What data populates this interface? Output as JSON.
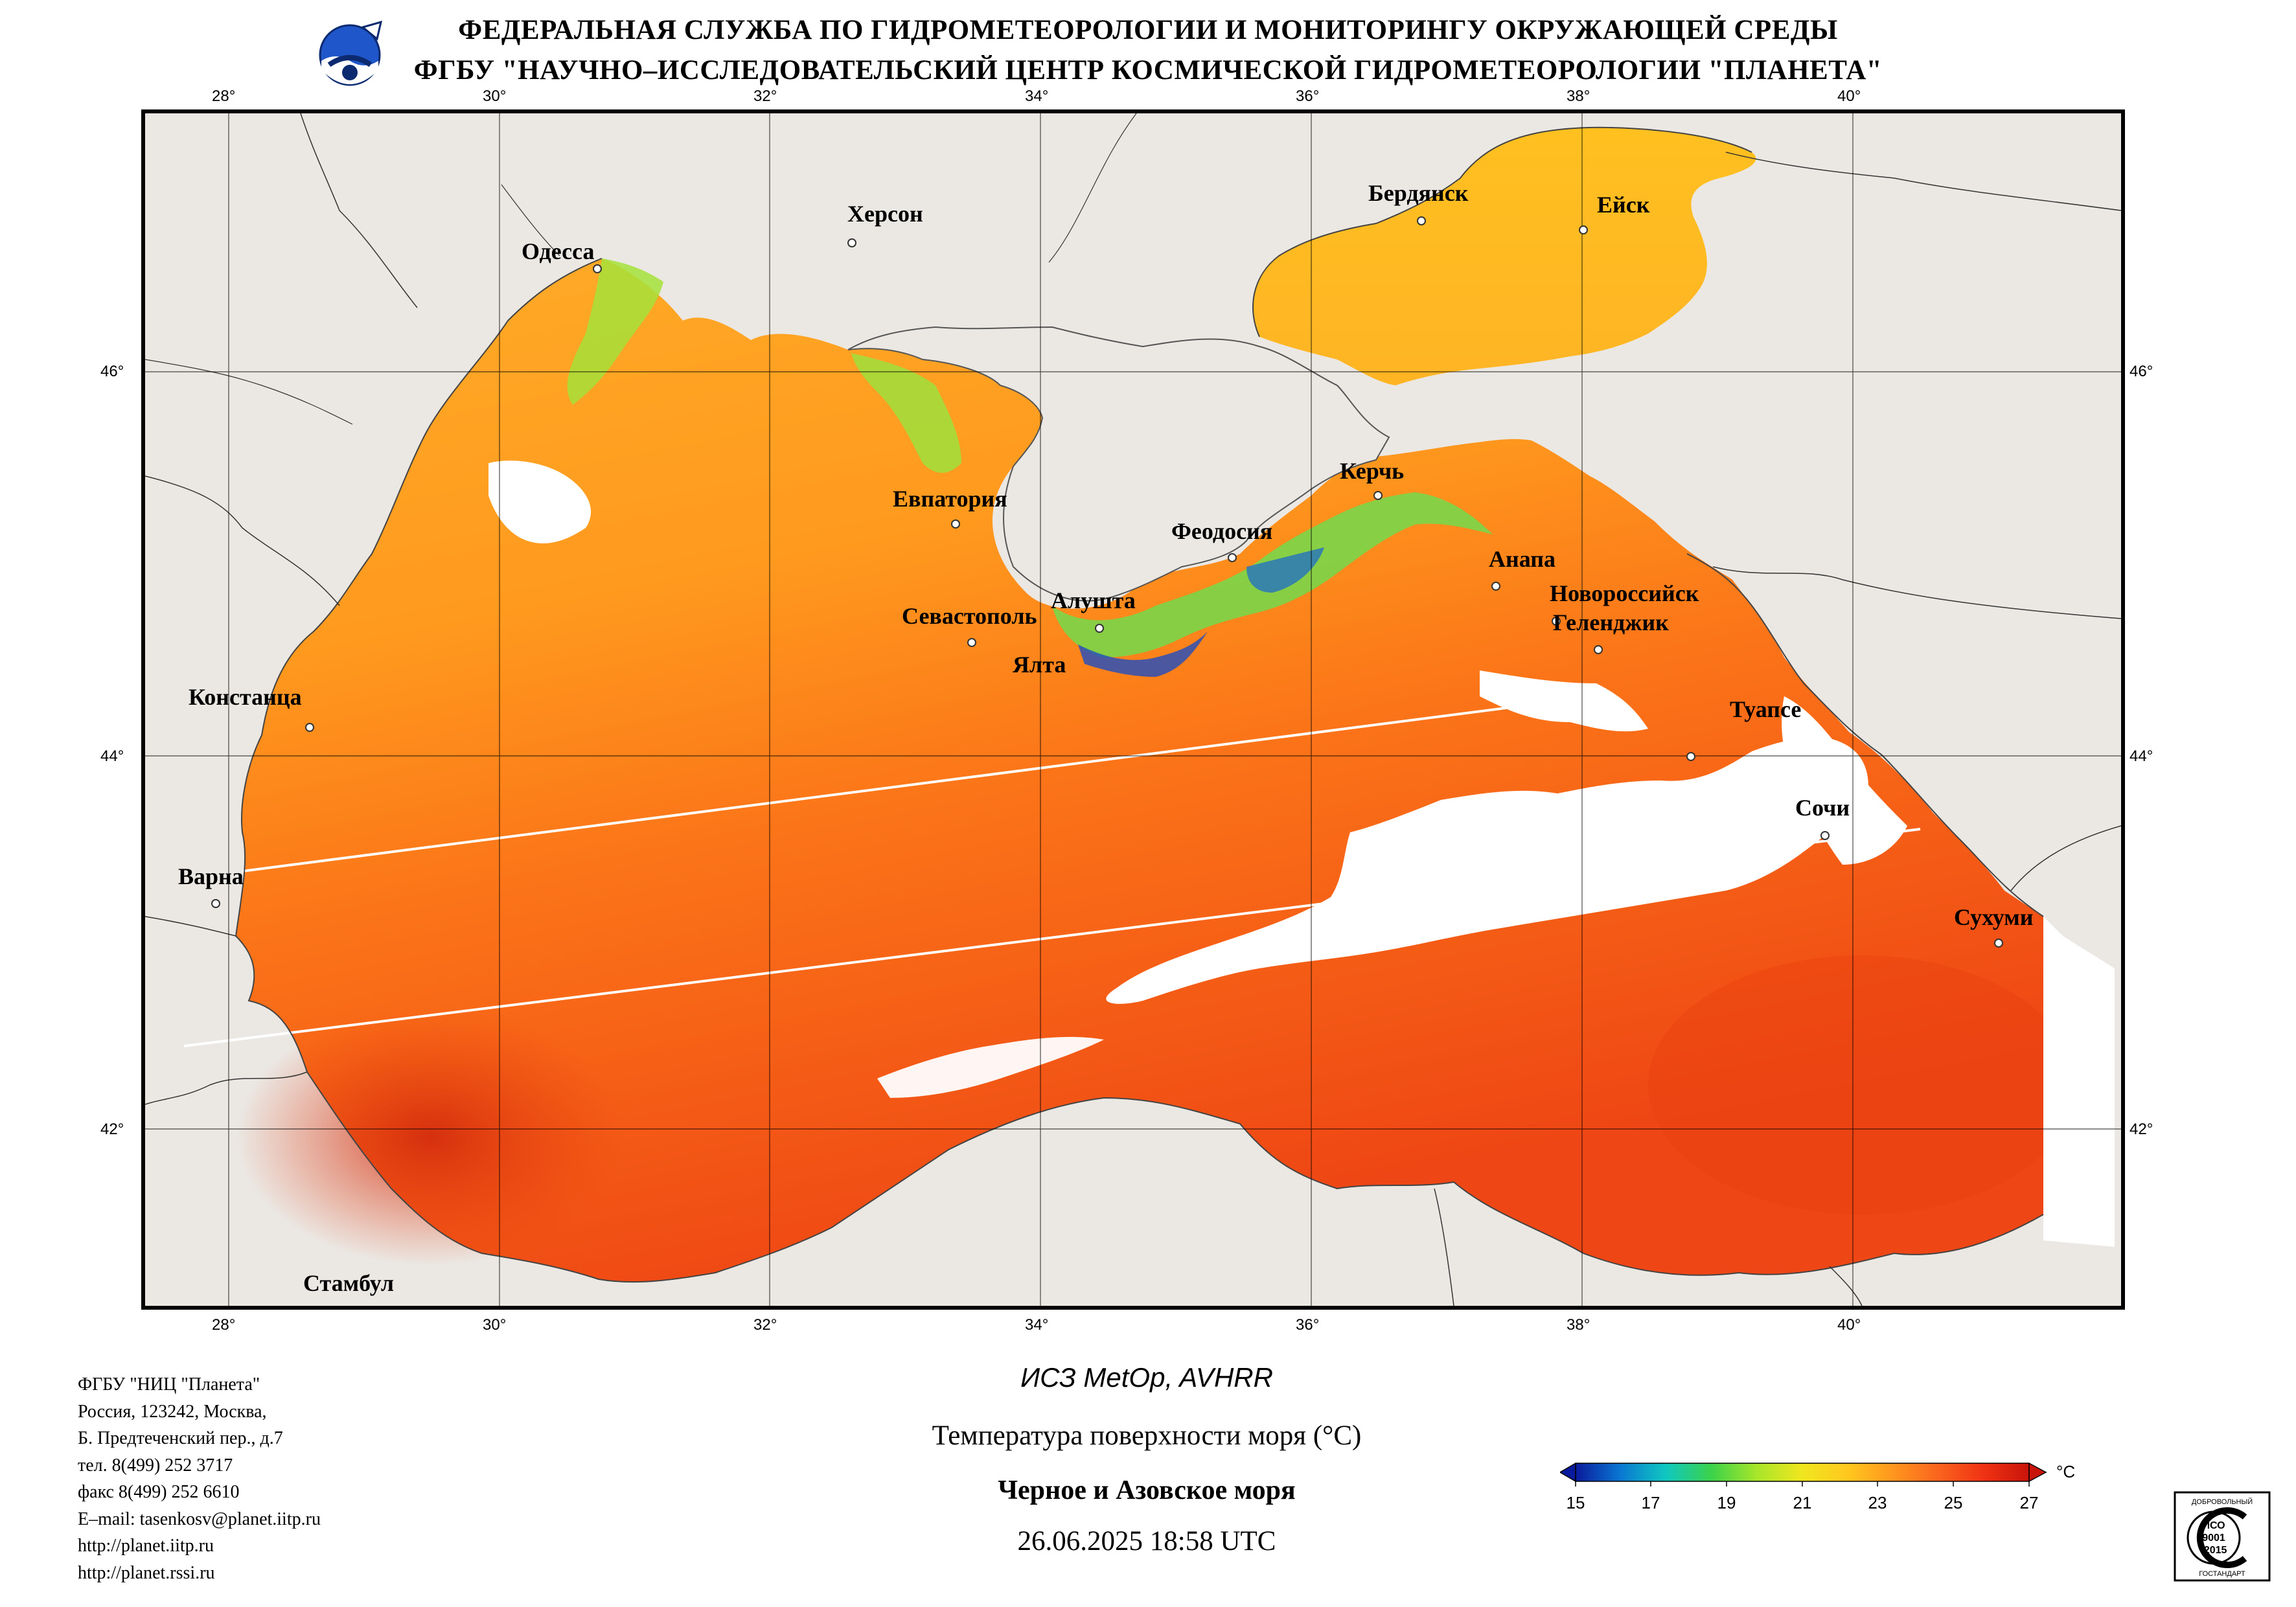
{
  "header": {
    "line1": "ФЕДЕРАЛЬНАЯ СЛУЖБА ПО ГИДРОМЕТЕОРОЛОГИИ И МОНИТОРИНГУ ОКРУЖАЮЩЕЙ СРЕДЫ",
    "line2": "ФГБУ \"НАУЧНО–ИССЛЕДОВАТЕЛЬСКИЙ ЦЕНТР КОСМИЧЕСКОЙ ГИДРОМЕТЕОРОЛОГИИ \"ПЛАНЕТА\""
  },
  "map": {
    "longitude_labels": [
      "28°",
      "30°",
      "32°",
      "34°",
      "36°",
      "38°",
      "40°"
    ],
    "latitude_labels": [
      "46°",
      "44°",
      "42°"
    ],
    "colors": {
      "land": "#ebe8e4",
      "cloud": "#ffffff",
      "sea_warm": "#f03a14",
      "sea_mid": "#ff9a1e",
      "sea_cool": "#a8e23a",
      "sea_cold": "#1a3fb4"
    },
    "cities": {
      "odessa": "Одесса",
      "kherson": "Херсон",
      "berdyansk": "Бердянск",
      "yeysk": "Ейск",
      "yevpatoria": "Евпатория",
      "feodosia": "Феодосия",
      "kerch": "Керчь",
      "anapa": "Анапа",
      "novorossiysk": "Новороссийск",
      "gelendzhik": "Геленджик",
      "sevastopol": "Севастополь",
      "alushta": "Алушта",
      "yalta": "Ялта",
      "constanta": "Констанца",
      "tuapse": "Туапсе",
      "sochi": "Сочи",
      "varna": "Варна",
      "sukhumi": "Сухуми",
      "istanbul": "Стамбул"
    }
  },
  "address": [
    "ФГБУ \"НИЦ \"Планета\"",
    "Россия, 123242, Москва,",
    "Б. Предтеченский пер., д.7",
    "тел. 8(499) 252 3717",
    "факс 8(499) 252 6610",
    "E–mail: tasenkosv@planet.iitp.ru",
    "http://planet.iitp.ru",
    "http://planet.rssi.ru"
  ],
  "caption": {
    "satellite": "ИСЗ MetOp, AVHRR",
    "product": "Температура поверхности моря (°C)",
    "region": "Черное и Азовское моря",
    "datetime": "26.06.2025 18:58 UTC"
  },
  "colorbar": {
    "unit": "°C",
    "min": 15,
    "max": 27,
    "tick_labels": [
      "15",
      "17",
      "19",
      "21",
      "23",
      "25",
      "27"
    ],
    "colors": [
      "#0a1a9c",
      "#0a78d2",
      "#10c8c0",
      "#3cd24a",
      "#a8e62a",
      "#f0e61e",
      "#ffc81e",
      "#ff961e",
      "#fa641e",
      "#f03214",
      "#c8140a"
    ]
  },
  "iso_badge": {
    "top_text": "ДОБРОВОЛЬНЫЙ",
    "line1": "ИСО",
    "line2": "9001",
    "line3": "-2015",
    "bottom_text": "ГОСТАНДАРТ"
  }
}
